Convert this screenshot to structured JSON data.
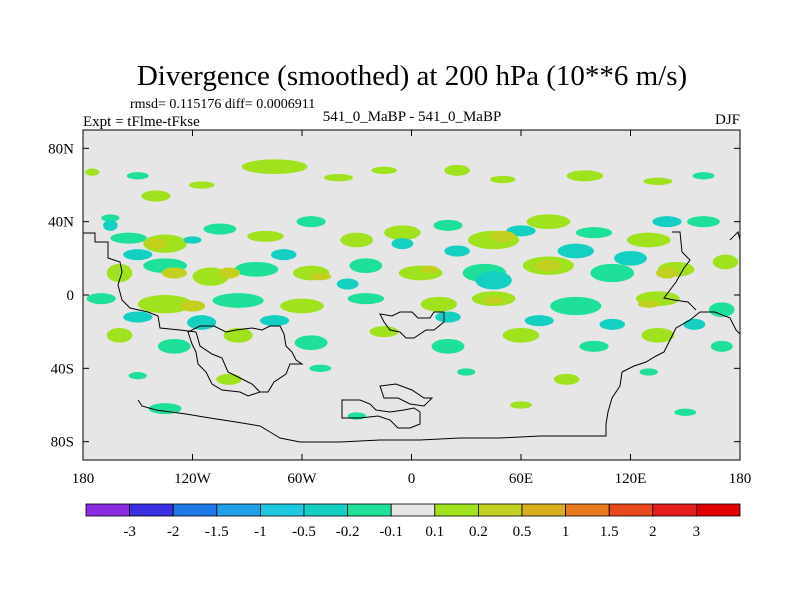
{
  "chart_data": {
    "type": "heatmap",
    "title": "Divergence (smoothed) at 200 hPa (10**6 m/s)",
    "stats_line": "rmsd= 0.115176 diff= 0.0006911",
    "experiment_label": "Expt = tFlme-tFkse",
    "comparison_label": "541_0_MaBP - 541_0_MaBP",
    "season_label": "DJF",
    "x_axis": {
      "range": [
        -180,
        180
      ],
      "ticks": [
        -180,
        -120,
        -60,
        0,
        60,
        120,
        180
      ],
      "tick_labels": [
        "180",
        "120W",
        "60W",
        "0",
        "60E",
        "120E",
        "180"
      ]
    },
    "y_axis": {
      "range": [
        -90,
        90
      ],
      "ticks": [
        80,
        40,
        0,
        -40,
        -80
      ],
      "tick_labels": [
        "80N",
        "40N",
        "0",
        "40S",
        "80S"
      ]
    },
    "colorbar": {
      "thresholds": [
        "-3",
        "-2",
        "-1.5",
        "-1",
        "-0.5",
        "-0.2",
        "-0.1",
        "0.1",
        "0.2",
        "0.5",
        "1",
        "1.5",
        "2",
        "3"
      ],
      "colors": [
        "#8a2be2",
        "#3a2fe0",
        "#1e78e8",
        "#1ea0e6",
        "#1ec8e0",
        "#14d0c2",
        "#1ee098",
        "#e6e6e6",
        "#a0e21e",
        "#c4d020",
        "#d8b01e",
        "#e6781e",
        "#e84a1e",
        "#e61e1e",
        "#e00000"
      ]
    },
    "field_blobs": [
      {
        "lon": -175,
        "lat": 67,
        "rx": 4,
        "ry": 2,
        "level": 8
      },
      {
        "lon": -150,
        "lat": 65,
        "rx": 6,
        "ry": 2,
        "level": 6
      },
      {
        "lon": -140,
        "lat": 54,
        "rx": 8,
        "ry": 3,
        "level": 8
      },
      {
        "lon": -115,
        "lat": 60,
        "rx": 7,
        "ry": 2,
        "level": 8
      },
      {
        "lon": -75,
        "lat": 70,
        "rx": 18,
        "ry": 4,
        "level": 8
      },
      {
        "lon": -40,
        "lat": 64,
        "rx": 8,
        "ry": 2,
        "level": 8
      },
      {
        "lon": -15,
        "lat": 68,
        "rx": 7,
        "ry": 2,
        "level": 8
      },
      {
        "lon": 25,
        "lat": 68,
        "rx": 7,
        "ry": 3,
        "level": 8
      },
      {
        "lon": 50,
        "lat": 63,
        "rx": 7,
        "ry": 2,
        "level": 8
      },
      {
        "lon": 95,
        "lat": 65,
        "rx": 10,
        "ry": 3,
        "level": 8
      },
      {
        "lon": 135,
        "lat": 62,
        "rx": 8,
        "ry": 2,
        "level": 8
      },
      {
        "lon": 160,
        "lat": 65,
        "rx": 6,
        "ry": 2,
        "level": 6
      },
      {
        "lon": -165,
        "lat": 42,
        "rx": 5,
        "ry": 2,
        "level": 6
      },
      {
        "lon": -155,
        "lat": 31,
        "rx": 10,
        "ry": 3,
        "level": 6
      },
      {
        "lon": -135,
        "lat": 28,
        "rx": 12,
        "ry": 5,
        "level": 8
      },
      {
        "lon": -105,
        "lat": 36,
        "rx": 9,
        "ry": 3,
        "level": 6
      },
      {
        "lon": -80,
        "lat": 32,
        "rx": 10,
        "ry": 3,
        "level": 8
      },
      {
        "lon": -55,
        "lat": 40,
        "rx": 8,
        "ry": 3,
        "level": 6
      },
      {
        "lon": -30,
        "lat": 30,
        "rx": 9,
        "ry": 4,
        "level": 8
      },
      {
        "lon": -5,
        "lat": 34,
        "rx": 10,
        "ry": 4,
        "level": 8
      },
      {
        "lon": 20,
        "lat": 38,
        "rx": 8,
        "ry": 3,
        "level": 6
      },
      {
        "lon": 45,
        "lat": 30,
        "rx": 14,
        "ry": 5,
        "level": 8
      },
      {
        "lon": 75,
        "lat": 40,
        "rx": 12,
        "ry": 4,
        "level": 8
      },
      {
        "lon": 100,
        "lat": 34,
        "rx": 10,
        "ry": 3,
        "level": 6
      },
      {
        "lon": 130,
        "lat": 30,
        "rx": 12,
        "ry": 4,
        "level": 8
      },
      {
        "lon": 160,
        "lat": 40,
        "rx": 9,
        "ry": 3,
        "level": 6
      },
      {
        "lon": 172,
        "lat": 18,
        "rx": 7,
        "ry": 4,
        "level": 8
      },
      {
        "lon": -160,
        "lat": 12,
        "rx": 7,
        "ry": 5,
        "level": 8
      },
      {
        "lon": -135,
        "lat": 16,
        "rx": 12,
        "ry": 4,
        "level": 6
      },
      {
        "lon": -110,
        "lat": 10,
        "rx": 10,
        "ry": 5,
        "level": 8
      },
      {
        "lon": -85,
        "lat": 14,
        "rx": 12,
        "ry": 4,
        "level": 6
      },
      {
        "lon": -55,
        "lat": 12,
        "rx": 10,
        "ry": 4,
        "level": 8
      },
      {
        "lon": -25,
        "lat": 16,
        "rx": 9,
        "ry": 4,
        "level": 6
      },
      {
        "lon": 5,
        "lat": 12,
        "rx": 12,
        "ry": 4,
        "level": 8
      },
      {
        "lon": 40,
        "lat": 12,
        "rx": 12,
        "ry": 5,
        "level": 6
      },
      {
        "lon": 75,
        "lat": 16,
        "rx": 14,
        "ry": 5,
        "level": 8
      },
      {
        "lon": 110,
        "lat": 12,
        "rx": 12,
        "ry": 5,
        "level": 6
      },
      {
        "lon": 145,
        "lat": 14,
        "rx": 10,
        "ry": 4,
        "level": 8
      },
      {
        "lon": -170,
        "lat": -2,
        "rx": 8,
        "ry": 3,
        "level": 6
      },
      {
        "lon": -135,
        "lat": -5,
        "rx": 15,
        "ry": 5,
        "level": 8
      },
      {
        "lon": -95,
        "lat": -3,
        "rx": 14,
        "ry": 4,
        "level": 6
      },
      {
        "lon": -60,
        "lat": -6,
        "rx": 12,
        "ry": 4,
        "level": 8
      },
      {
        "lon": -25,
        "lat": -2,
        "rx": 10,
        "ry": 3,
        "level": 6
      },
      {
        "lon": 15,
        "lat": -5,
        "rx": 10,
        "ry": 4,
        "level": 8
      },
      {
        "lon": 45,
        "lat": -2,
        "rx": 12,
        "ry": 4,
        "level": 8
      },
      {
        "lon": 90,
        "lat": -6,
        "rx": 14,
        "ry": 5,
        "level": 6
      },
      {
        "lon": 135,
        "lat": -2,
        "rx": 12,
        "ry": 4,
        "level": 8
      },
      {
        "lon": 170,
        "lat": -8,
        "rx": 7,
        "ry": 4,
        "level": 6
      },
      {
        "lon": -160,
        "lat": -22,
        "rx": 7,
        "ry": 4,
        "level": 8
      },
      {
        "lon": -130,
        "lat": -28,
        "rx": 9,
        "ry": 4,
        "level": 6
      },
      {
        "lon": -95,
        "lat": -22,
        "rx": 8,
        "ry": 4,
        "level": 8
      },
      {
        "lon": -55,
        "lat": -26,
        "rx": 9,
        "ry": 4,
        "level": 6
      },
      {
        "lon": -15,
        "lat": -20,
        "rx": 8,
        "ry": 3,
        "level": 8
      },
      {
        "lon": 20,
        "lat": -28,
        "rx": 9,
        "ry": 4,
        "level": 6
      },
      {
        "lon": 60,
        "lat": -22,
        "rx": 10,
        "ry": 4,
        "level": 8
      },
      {
        "lon": 100,
        "lat": -28,
        "rx": 8,
        "ry": 3,
        "level": 6
      },
      {
        "lon": 135,
        "lat": -22,
        "rx": 9,
        "ry": 4,
        "level": 8
      },
      {
        "lon": 170,
        "lat": -28,
        "rx": 6,
        "ry": 3,
        "level": 6
      },
      {
        "lon": -150,
        "lat": -44,
        "rx": 5,
        "ry": 2,
        "level": 6
      },
      {
        "lon": -100,
        "lat": -46,
        "rx": 7,
        "ry": 3,
        "level": 8
      },
      {
        "lon": -50,
        "lat": -40,
        "rx": 6,
        "ry": 2,
        "level": 6
      },
      {
        "lon": 30,
        "lat": -42,
        "rx": 5,
        "ry": 2,
        "level": 6
      },
      {
        "lon": 85,
        "lat": -46,
        "rx": 7,
        "ry": 3,
        "level": 8
      },
      {
        "lon": 130,
        "lat": -42,
        "rx": 5,
        "ry": 2,
        "level": 6
      },
      {
        "lon": -135,
        "lat": -62,
        "rx": 9,
        "ry": 3,
        "level": 6
      },
      {
        "lon": -30,
        "lat": -66,
        "rx": 5,
        "ry": 2,
        "level": 6
      },
      {
        "lon": 60,
        "lat": -60,
        "rx": 6,
        "ry": 2,
        "level": 8
      },
      {
        "lon": 150,
        "lat": -64,
        "rx": 6,
        "ry": 2,
        "level": 6
      },
      {
        "lon": -165,
        "lat": 38,
        "rx": 4,
        "ry": 3,
        "level": 5
      },
      {
        "lon": -150,
        "lat": 22,
        "rx": 8,
        "ry": 3,
        "level": 5
      },
      {
        "lon": -120,
        "lat": 30,
        "rx": 5,
        "ry": 2,
        "level": 5
      },
      {
        "lon": -70,
        "lat": 22,
        "rx": 7,
        "ry": 3,
        "level": 5
      },
      {
        "lon": -35,
        "lat": 6,
        "rx": 6,
        "ry": 3,
        "level": 5
      },
      {
        "lon": -5,
        "lat": 28,
        "rx": 6,
        "ry": 3,
        "level": 5
      },
      {
        "lon": 25,
        "lat": 24,
        "rx": 7,
        "ry": 3,
        "level": 5
      },
      {
        "lon": 45,
        "lat": 8,
        "rx": 10,
        "ry": 5,
        "level": 5
      },
      {
        "lon": 60,
        "lat": 35,
        "rx": 8,
        "ry": 3,
        "level": 5
      },
      {
        "lon": 90,
        "lat": 24,
        "rx": 10,
        "ry": 4,
        "level": 5
      },
      {
        "lon": 120,
        "lat": 20,
        "rx": 9,
        "ry": 4,
        "level": 5
      },
      {
        "lon": 140,
        "lat": 40,
        "rx": 8,
        "ry": 3,
        "level": 5
      },
      {
        "lon": -150,
        "lat": -12,
        "rx": 8,
        "ry": 3,
        "level": 5
      },
      {
        "lon": -115,
        "lat": -15,
        "rx": 8,
        "ry": 4,
        "level": 5
      },
      {
        "lon": -75,
        "lat": -14,
        "rx": 8,
        "ry": 3,
        "level": 5
      },
      {
        "lon": 20,
        "lat": -12,
        "rx": 7,
        "ry": 3,
        "level": 5
      },
      {
        "lon": 70,
        "lat": -14,
        "rx": 8,
        "ry": 3,
        "level": 5
      },
      {
        "lon": 110,
        "lat": -16,
        "rx": 7,
        "ry": 3,
        "level": 5
      },
      {
        "lon": 155,
        "lat": -16,
        "rx": 6,
        "ry": 3,
        "level": 5
      },
      {
        "lon": -130,
        "lat": 12,
        "rx": 7,
        "ry": 3,
        "level": 9
      },
      {
        "lon": -100,
        "lat": 12,
        "rx": 6,
        "ry": 3,
        "level": 9
      },
      {
        "lon": -50,
        "lat": 10,
        "rx": 6,
        "ry": 2,
        "level": 9
      },
      {
        "lon": 10,
        "lat": 14,
        "rx": 5,
        "ry": 2,
        "level": 9
      },
      {
        "lon": 75,
        "lat": 16,
        "rx": 7,
        "ry": 3,
        "level": 9
      },
      {
        "lon": 140,
        "lat": 12,
        "rx": 6,
        "ry": 3,
        "level": 9
      },
      {
        "lon": -120,
        "lat": -6,
        "rx": 7,
        "ry": 3,
        "level": 9
      },
      {
        "lon": 45,
        "lat": -3,
        "rx": 6,
        "ry": 2,
        "level": 9
      },
      {
        "lon": 130,
        "lat": -5,
        "rx": 6,
        "ry": 2,
        "level": 9
      },
      {
        "lon": 50,
        "lat": 32,
        "rx": 7,
        "ry": 3,
        "level": 9
      },
      {
        "lon": -140,
        "lat": 28,
        "rx": 6,
        "ry": 3,
        "level": 9
      }
    ]
  }
}
